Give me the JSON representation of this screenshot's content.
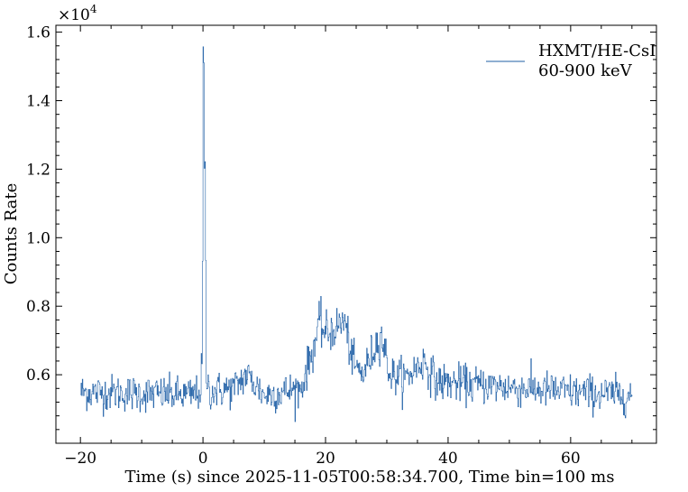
{
  "chart_data": {
    "type": "line",
    "title": "",
    "xlabel": "Time (s) since 2025-11-05T00:58:34.700, Time bin=100 ms",
    "ylabel": "Counts Rate",
    "y_multiplier_label": "×10^4",
    "y_multiplier_base": "×10",
    "y_multiplier_exp": "4",
    "xlim": [
      -24,
      74
    ],
    "ylim": [
      4000,
      16200
    ],
    "x_ticks": [
      -20,
      0,
      20,
      40,
      60
    ],
    "x_tick_labels": [
      "−20",
      "0",
      "20",
      "40",
      "60"
    ],
    "y_ticks": [
      6000,
      8000,
      10000,
      12000,
      14000,
      16000
    ],
    "y_tick_labels": [
      "0.6",
      "0.8",
      "1.0",
      "1.2",
      "1.4",
      "1.6"
    ],
    "grid": false,
    "legend_position": "top-right",
    "bin_seconds": 0.1,
    "series": [
      {
        "name": "HXMT/HE-CsI",
        "name_line2": "60-900 keV",
        "color": "#1f5fa6",
        "x_range": [
          -20,
          70
        ],
        "key_points": [
          [
            -20.0,
            5500
          ],
          [
            -10.0,
            5450
          ],
          [
            -2.0,
            5400
          ],
          [
            -0.5,
            5500
          ],
          [
            -0.2,
            6200
          ],
          [
            -0.1,
            9000
          ],
          [
            0.0,
            15500
          ],
          [
            0.1,
            15000
          ],
          [
            0.2,
            12000
          ],
          [
            0.3,
            11800
          ],
          [
            0.5,
            6000
          ],
          [
            1.0,
            5500
          ],
          [
            5.0,
            5600
          ],
          [
            7.0,
            6000
          ],
          [
            10.0,
            5400
          ],
          [
            16.0,
            5600
          ],
          [
            18.0,
            6800
          ],
          [
            19.0,
            7500
          ],
          [
            20.0,
            7200
          ],
          [
            22.0,
            7400
          ],
          [
            23.0,
            7600
          ],
          [
            24.5,
            6300
          ],
          [
            26.0,
            6000
          ],
          [
            27.5,
            6600
          ],
          [
            29.0,
            7200
          ],
          [
            30.5,
            6000
          ],
          [
            33.0,
            5900
          ],
          [
            36.0,
            6400
          ],
          [
            38.0,
            5800
          ],
          [
            45.0,
            5700
          ],
          [
            60.0,
            5500
          ],
          [
            70.0,
            5400
          ]
        ]
      }
    ]
  }
}
